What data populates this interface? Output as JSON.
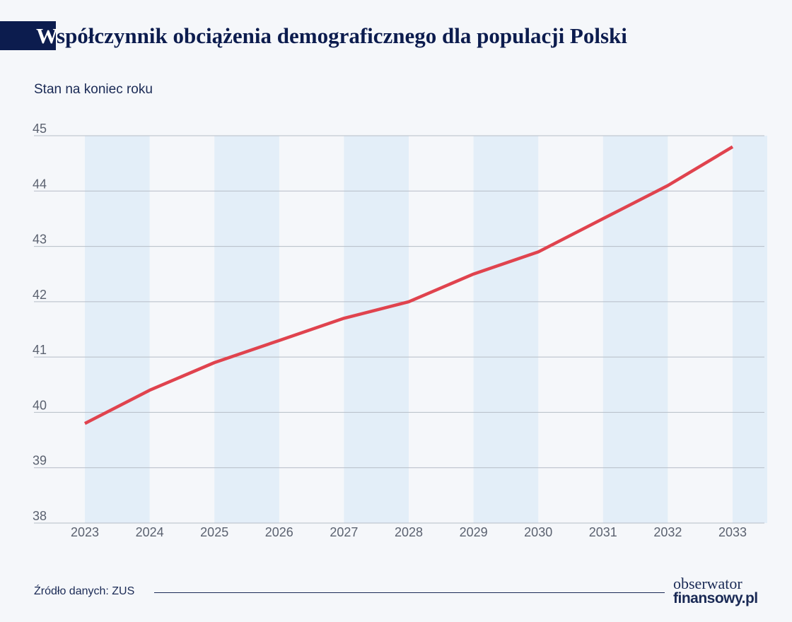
{
  "title": {
    "first_letter": "W",
    "rest": "spółczynnik obciążenia demograficznego dla populacji Polski"
  },
  "subtitle": "Stan na koniec roku",
  "footer": {
    "source": "Źródło danych: ZUS",
    "logo_line1": "obserwator",
    "logo_line2": "finansowy.pl"
  },
  "colors": {
    "line": "#e0434e",
    "band": "#e3eef8",
    "grid": "#b5bcc6",
    "text": "#1a2a55",
    "title_block": "#0c1c4e"
  },
  "chart_data": {
    "type": "line",
    "x": [
      "2023",
      "2024",
      "2025",
      "2026",
      "2027",
      "2028",
      "2029",
      "2030",
      "2031",
      "2032",
      "2033"
    ],
    "series": [
      {
        "values": [
          39.8,
          40.4,
          40.9,
          41.3,
          41.7,
          42.0,
          42.5,
          42.9,
          43.5,
          44.1,
          44.8
        ]
      }
    ],
    "yticks": [
      "38",
      "39",
      "40",
      "41",
      "42",
      "43",
      "44",
      "45"
    ],
    "ylim": [
      38,
      45
    ],
    "grid": true,
    "alternating_bands": true
  }
}
